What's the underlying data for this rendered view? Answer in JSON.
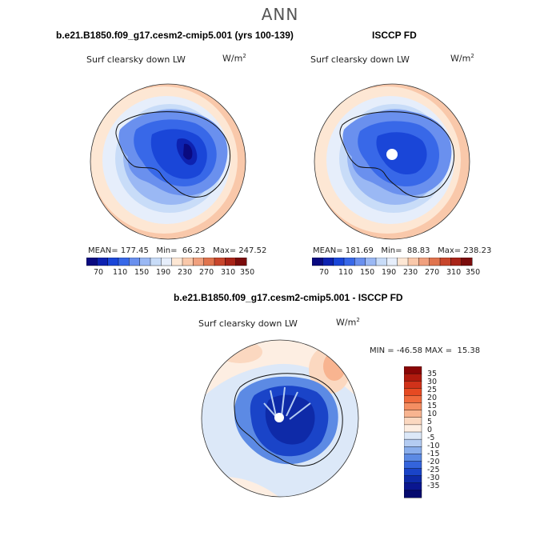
{
  "header": {
    "season": "ANN"
  },
  "panels": [
    {
      "title": "b.e21.B1850.f09_g17.cesm2-cmip5.001 (yrs 100-139)",
      "field": "Surf clearsky down LW",
      "units_base": "W/m",
      "units_exp": "2",
      "stats": {
        "mean_label": "MEAN=",
        "mean": "177.45",
        "min_label": "Min=",
        "min": "66.23",
        "max_label": "Max=",
        "max": "247.52"
      }
    },
    {
      "title": "ISCCP FD",
      "field": "Surf clearsky down LW",
      "units_base": "W/m",
      "units_exp": "2",
      "stats": {
        "mean_label": "MEAN=",
        "mean": "181.69",
        "min_label": "Min=",
        "min": "88.83",
        "max_label": "Max=",
        "max": "238.23"
      }
    },
    {
      "title": "b.e21.B1850.f09_g17.cesm2-cmip5.001 - ISCCP FD",
      "field": "Surf clearsky down LW",
      "units_base": "W/m",
      "units_exp": "2",
      "stats": {
        "min_label": "MIN =",
        "min": "-46.58",
        "max_label": "MAX =",
        "max": "15.38"
      }
    }
  ],
  "colorbar_abs": {
    "labels": [
      "70",
      "110",
      "150",
      "190",
      "230",
      "270",
      "310",
      "350"
    ],
    "colors": [
      "#0a0a80",
      "#0d22b0",
      "#1a46d8",
      "#3868e8",
      "#6a90ee",
      "#9ab8f4",
      "#c8dcf8",
      "#e6eefb",
      "#fde7d4",
      "#f9c8aa",
      "#f0a07e",
      "#e0744e",
      "#c8462c",
      "#a82418",
      "#7a0c0c"
    ]
  },
  "colorbar_diff": {
    "labels": [
      "35",
      "30",
      "25",
      "20",
      "15",
      "10",
      "5",
      "0",
      "-5",
      "-10",
      "-15",
      "-20",
      "-25",
      "-30",
      "-35"
    ],
    "colors": [
      "#8a0606",
      "#b01a0e",
      "#d0321a",
      "#e64a22",
      "#f06a3c",
      "#f48e62",
      "#f8b490",
      "#fbd8c0",
      "#fdeee2",
      "#dce8f8",
      "#b4ccf2",
      "#8aaeec",
      "#5c8ae4",
      "#3464dc",
      "#1a44c8",
      "#0e2aa8",
      "#0a1690",
      "#050a6e"
    ]
  }
}
